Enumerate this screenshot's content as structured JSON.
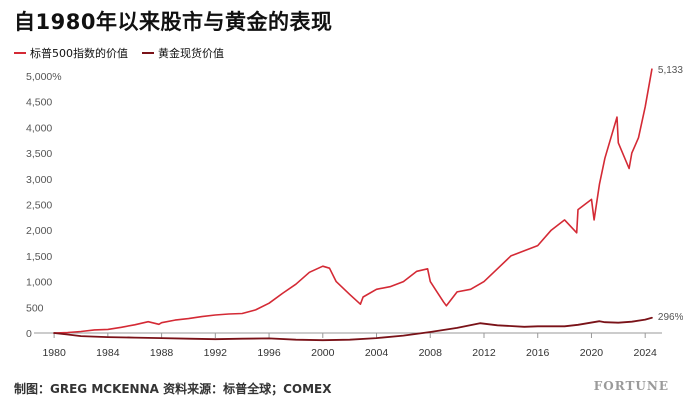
{
  "title": "自1980年以来股市与黄金的表现",
  "footer": "制图：GREG MCKENNA 资料来源：标普全球；COMEX",
  "brand": "FORTUNE",
  "colors": {
    "sp500": "#d42a35",
    "gold": "#7a1218",
    "axis": "#999999",
    "text": "#555555"
  },
  "chart_data": {
    "type": "line",
    "title": "自1980年以来股市与黄金的表现",
    "xlabel": "",
    "ylabel": "",
    "xlim": [
      1978.8,
      2025.4
    ],
    "ylim": [
      0,
      5000
    ],
    "x_ticks": [
      1980,
      1984,
      1988,
      1992,
      1996,
      2000,
      2004,
      2008,
      2012,
      2016,
      2020,
      2024
    ],
    "x_tick_labels": [
      "1980",
      "1984",
      "1988",
      "1992",
      "1996",
      "2000",
      "2004",
      "2008",
      "2012",
      "2016",
      "2020",
      "2024"
    ],
    "y_ticks": [
      0,
      500,
      1000,
      1500,
      2000,
      2500,
      3000,
      3500,
      4000,
      4500,
      5000
    ],
    "y_tick_labels": [
      "0",
      "500",
      "1,000",
      "1,500",
      "2,000",
      "2,500",
      "3,000",
      "3,500",
      "4,000",
      "4,500",
      "5,000%"
    ],
    "grid": false,
    "legend_position": "top-left",
    "series": [
      {
        "name": "标普500指数的价值",
        "color": "#d42a35",
        "end_label": "5,133%",
        "x": [
          1980,
          1981,
          1982,
          1983,
          1984,
          1985,
          1986,
          1987,
          1987.8,
          1988,
          1989,
          1990,
          1991,
          1992,
          1993,
          1994,
          1995,
          1996,
          1997,
          1998,
          1999,
          2000,
          2000.5,
          2001,
          2002,
          2002.8,
          2003,
          2004,
          2005,
          2006,
          2007,
          2007.8,
          2008,
          2008.5,
          2009,
          2009.2,
          2010,
          2011,
          2012,
          2013,
          2014,
          2015,
          2016,
          2017,
          2018,
          2018.9,
          2019,
          2020,
          2020.2,
          2020.6,
          2021,
          2021.9,
          2022,
          2022.8,
          2023,
          2023.5,
          2024,
          2024.5
        ],
        "values": [
          0,
          10,
          30,
          60,
          70,
          110,
          160,
          220,
          170,
          200,
          250,
          280,
          320,
          350,
          370,
          380,
          450,
          580,
          770,
          950,
          1180,
          1300,
          1260,
          1000,
          750,
          560,
          700,
          850,
          900,
          1000,
          1200,
          1250,
          1000,
          800,
          600,
          530,
          800,
          850,
          1000,
          1250,
          1500,
          1600,
          1700,
          2000,
          2200,
          1950,
          2400,
          2600,
          2200,
          2900,
          3400,
          4200,
          3700,
          3200,
          3500,
          3800,
          4400,
          5133
        ]
      },
      {
        "name": "黄金现货价值",
        "color": "#7a1218",
        "end_label": "296%",
        "x": [
          1980,
          1981,
          1982,
          1984,
          1986,
          1988,
          1990,
          1992,
          1994,
          1996,
          1998,
          2000,
          2002,
          2004,
          2006,
          2008,
          2010,
          2011.7,
          2013,
          2015,
          2016,
          2018,
          2019,
          2020.6,
          2021,
          2022,
          2023,
          2024,
          2024.5
        ],
        "values": [
          0,
          -30,
          -60,
          -80,
          -90,
          -100,
          -110,
          -120,
          -110,
          -105,
          -130,
          -140,
          -130,
          -100,
          -50,
          20,
          100,
          190,
          150,
          120,
          130,
          130,
          160,
          230,
          210,
          200,
          220,
          260,
          296
        ]
      }
    ]
  }
}
